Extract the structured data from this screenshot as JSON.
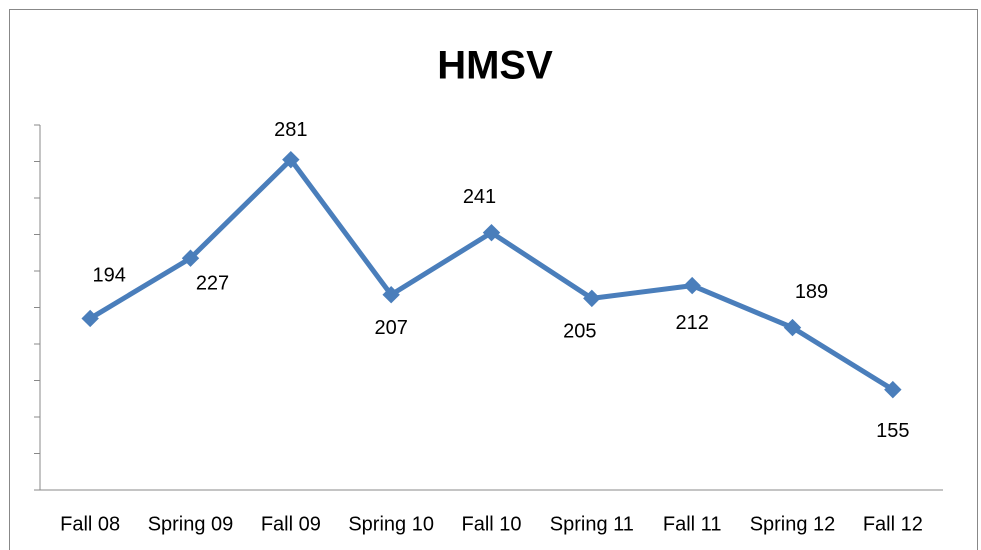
{
  "chart_data": {
    "type": "line",
    "title": "HMSV",
    "categories": [
      "Fall 08",
      "Spring 09",
      "Fall 09",
      "Spring 10",
      "Fall 10",
      "Spring 11",
      "Fall 11",
      "Spring 12",
      "Fall 12"
    ],
    "series": [
      {
        "name": "HMSV",
        "color": "#4a7ebb",
        "values": [
          194,
          227,
          281,
          207,
          241,
          205,
          212,
          189,
          155
        ]
      }
    ],
    "ylim": [
      100,
      300
    ],
    "yticks": [
      100,
      120,
      140,
      160,
      180,
      200,
      220,
      240,
      260,
      280,
      300
    ],
    "legend": false
  }
}
